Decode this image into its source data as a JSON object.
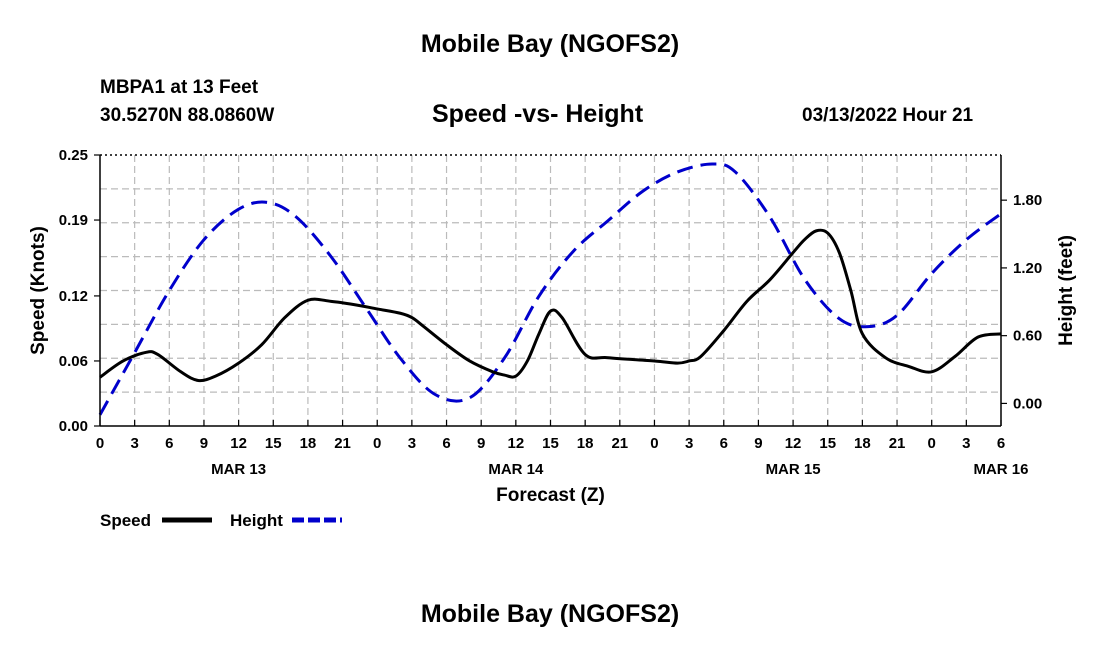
{
  "header": {
    "title": "Mobile Bay (NGOFS2)",
    "station": "MBPA1 at 13 Feet",
    "coords": "30.5270N  88.0860W",
    "subtitle": "Speed -vs- Height",
    "datetime": "03/13/2022 Hour 21"
  },
  "footer": {
    "title": "Mobile Bay (NGOFS2)"
  },
  "colors": {
    "speed": "#000000",
    "height": "#0000cc",
    "grid": "#bbbbbb"
  },
  "chart_data": {
    "type": "line",
    "title": "Speed -vs- Height",
    "xlabel": "Forecast (Z)",
    "ylabel": "Speed (Knots)",
    "y2label": "Height (feet)",
    "x_unit": "hours since 00Z Mar 13",
    "xlim": [
      0,
      78
    ],
    "ylim": [
      0,
      0.25
    ],
    "y2lim": [
      -0.2,
      2.2
    ],
    "x_tick_values": [
      0,
      3,
      6,
      9,
      12,
      15,
      18,
      21,
      24,
      27,
      30,
      33,
      36,
      39,
      42,
      45,
      48,
      51,
      54,
      57,
      60,
      63,
      66,
      69,
      72,
      75,
      78
    ],
    "x_tick_labels": [
      "0",
      "3",
      "6",
      "9",
      "12",
      "15",
      "18",
      "21",
      "0",
      "3",
      "6",
      "9",
      "12",
      "15",
      "18",
      "21",
      "0",
      "3",
      "6",
      "9",
      "12",
      "15",
      "18",
      "21",
      "0",
      "3",
      "6"
    ],
    "y_tick_values": [
      0,
      0.06,
      0.12,
      0.19,
      0.25
    ],
    "y_tick_labels": [
      "0.00",
      "0.06",
      "0.12",
      "0.19",
      "0.25"
    ],
    "y2_tick_values": [
      0,
      0.6,
      1.2,
      1.8
    ],
    "y2_tick_labels": [
      "0.00",
      "0.60",
      "1.20",
      "1.80"
    ],
    "date_labels": [
      {
        "x": 12,
        "label": "MAR 13"
      },
      {
        "x": 36,
        "label": "MAR 14"
      },
      {
        "x": 60,
        "label": "MAR 15"
      },
      {
        "x": 78,
        "label": "MAR 16"
      }
    ],
    "series": [
      {
        "name": "Speed",
        "axis": "left",
        "style": "solid",
        "x": [
          0,
          2,
          4,
          5,
          7,
          8.5,
          10,
          12,
          14,
          16,
          18,
          20,
          22,
          24,
          26,
          27,
          28,
          30,
          32,
          34,
          35,
          36,
          37,
          38,
          39,
          40,
          42,
          44,
          48,
          50,
          51,
          52,
          54,
          56,
          58,
          60,
          61,
          62,
          63,
          64,
          65,
          66,
          68,
          70,
          72,
          74,
          76,
          78
        ],
        "values": [
          0.045,
          0.06,
          0.068,
          0.066,
          0.05,
          0.042,
          0.046,
          0.058,
          0.075,
          0.1,
          0.116,
          0.115,
          0.112,
          0.108,
          0.104,
          0.1,
          0.092,
          0.075,
          0.06,
          0.05,
          0.047,
          0.046,
          0.06,
          0.085,
          0.106,
          0.1,
          0.066,
          0.063,
          0.06,
          0.058,
          0.06,
          0.064,
          0.088,
          0.115,
          0.135,
          0.16,
          0.172,
          0.18,
          0.178,
          0.16,
          0.125,
          0.085,
          0.063,
          0.055,
          0.05,
          0.064,
          0.082,
          0.085
        ]
      },
      {
        "name": "Height",
        "axis": "right",
        "style": "dashed",
        "x": [
          0,
          3,
          6,
          9,
          12,
          14.5,
          17,
          20,
          23,
          26,
          29,
          32,
          35,
          38,
          41,
          44,
          47,
          50,
          53,
          55,
          58,
          61,
          64,
          66.5,
          69,
          72,
          75,
          78
        ],
        "values": [
          -0.1,
          0.45,
          1.0,
          1.45,
          1.72,
          1.78,
          1.65,
          1.3,
          0.85,
          0.4,
          0.08,
          0.05,
          0.4,
          0.95,
          1.35,
          1.62,
          1.88,
          2.05,
          2.12,
          2.05,
          1.65,
          1.1,
          0.75,
          0.68,
          0.78,
          1.15,
          1.45,
          1.68
        ]
      }
    ],
    "legend": {
      "position": "bottom-left",
      "entries": [
        "Speed",
        "Height"
      ]
    }
  }
}
